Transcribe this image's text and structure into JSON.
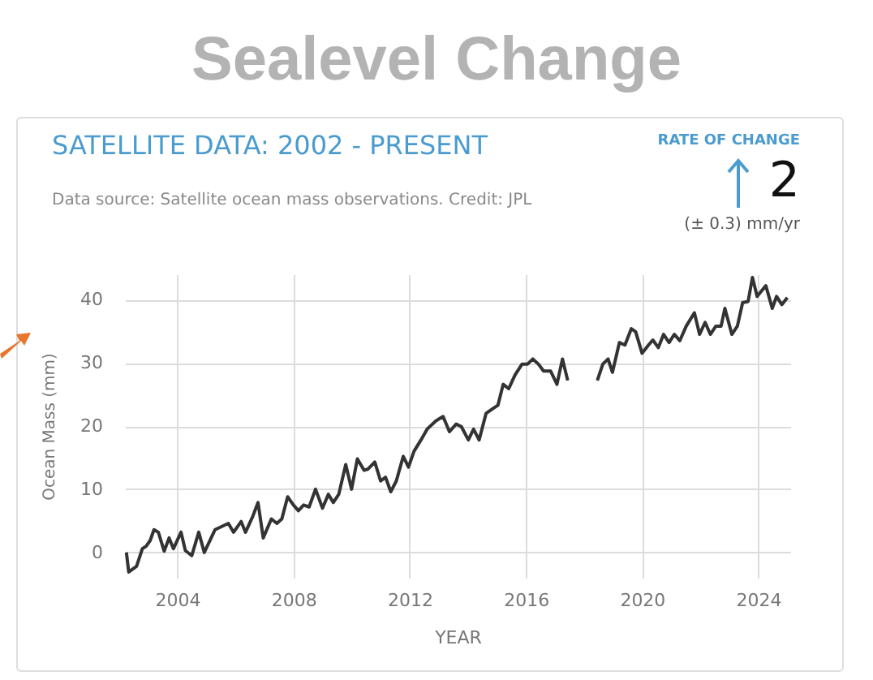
{
  "chart_data": {
    "type": "line",
    "title": "Sealevel Change",
    "subtitle": "SATELLITE DATA: 2002 - PRESENT",
    "annotations": [
      "Data source: Satellite ocean mass observations. Credit: JPL",
      "RATE OF CHANGE",
      "2",
      "(± 0.3) mm/yr"
    ],
    "xlabel": "YEAR",
    "ylabel": "Ocean Mass (mm)",
    "x": [
      2002.25,
      2002.33,
      2002.6,
      2002.8,
      2002.93,
      2003.07,
      2003.2,
      2003.35,
      2003.55,
      2003.72,
      2003.87,
      2004.13,
      2004.28,
      2004.5,
      2004.74,
      2004.93,
      2005.3,
      2005.76,
      2005.94,
      2006.2,
      2006.35,
      2006.6,
      2006.78,
      2006.96,
      2007.24,
      2007.43,
      2007.6,
      2007.8,
      2008.0,
      2008.17,
      2008.35,
      2008.54,
      2008.76,
      2009.0,
      2009.2,
      2009.37,
      2009.56,
      2009.8,
      2010.0,
      2010.2,
      2010.43,
      2010.57,
      2010.8,
      2011.0,
      2011.17,
      2011.35,
      2011.54,
      2011.78,
      2011.96,
      2012.15,
      2012.39,
      2012.6,
      2012.9,
      2013.15,
      2013.37,
      2013.6,
      2013.78,
      2014.02,
      2014.2,
      2014.39,
      2014.63,
      2014.85,
      2015.04,
      2015.22,
      2015.41,
      2015.63,
      2015.87,
      2016.06,
      2016.24,
      2016.43,
      2016.61,
      2016.85,
      2017.07,
      2017.26,
      2017.44,
      2017.95,
      2018.46,
      2018.65,
      2018.83,
      2018.98,
      2019.22,
      2019.41,
      2019.63,
      2019.78,
      2020.0,
      2020.22,
      2020.37,
      2020.56,
      2020.74,
      2020.93,
      2021.11,
      2021.3,
      2021.52,
      2021.8,
      2021.98,
      2022.17,
      2022.35,
      2022.54,
      2022.72,
      2022.85,
      2023.09,
      2023.28,
      2023.46,
      2023.65,
      2023.8,
      2023.96,
      2024.26,
      2024.48,
      2024.63,
      2024.81,
      2025.0
    ],
    "series": [
      {
        "color": "#333333",
        "values": [
          0,
          -3.1,
          -2.2,
          0.6,
          1,
          1.9,
          3.6,
          3.2,
          0.2,
          2.3,
          0.6,
          3.2,
          0.3,
          -0.5,
          3.2,
          0,
          3.6,
          4.6,
          3.2,
          4.9,
          3.2,
          5.7,
          7.9,
          2.3,
          5.3,
          4.6,
          5.3,
          8.8,
          7.5,
          6.6,
          7.5,
          7.2,
          10,
          7,
          9.2,
          7.9,
          9.2,
          13.9,
          10,
          14.8,
          13,
          13.2,
          14.3,
          11.3,
          11.9,
          9.6,
          11.3,
          15.2,
          13.5,
          16,
          17.8,
          19.5,
          20.8,
          21.5,
          19.1,
          20.3,
          19.9,
          17.8,
          19.5,
          17.8,
          22,
          22.7,
          23.3,
          26.6,
          25.9,
          28.1,
          29.8,
          29.8,
          30.6,
          29.8,
          28.7,
          28.7,
          26.6,
          30.6,
          27.2,
          null,
          27.2,
          29.8,
          30.6,
          28.5,
          33.2,
          32.8,
          35.4,
          34.9,
          31.5,
          32.8,
          33.6,
          32.4,
          34.5,
          33.2,
          34.5,
          33.5,
          35.8,
          37.9,
          34.5,
          36.4,
          34.5,
          35.8,
          35.8,
          38.6,
          34.5,
          35.8,
          39.5,
          39.7,
          43.5,
          40.5,
          42.2,
          38.6,
          40.5,
          39.2,
          40.3
        ]
      }
    ],
    "xlim": [
      2002.2,
      2025.1
    ],
    "xticks": [
      2004,
      2008,
      2012,
      2016,
      2020,
      2024
    ],
    "ylim": [
      -4,
      44
    ],
    "yticks": [
      0,
      10,
      20,
      30,
      40
    ],
    "grid": true,
    "line_style": "solid",
    "marker": "none"
  }
}
